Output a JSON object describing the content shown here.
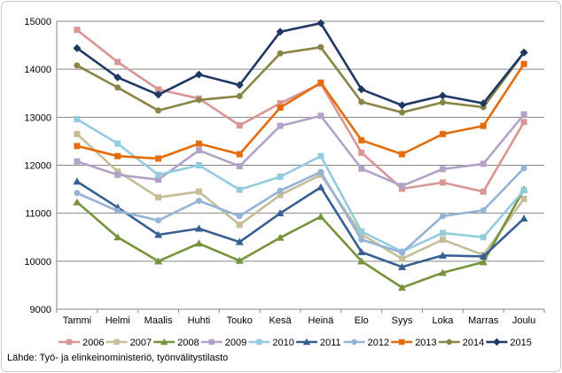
{
  "chart_data": {
    "type": "line",
    "title": "",
    "xlabel": "",
    "ylabel": "",
    "ylim": [
      9000,
      15000
    ],
    "ytick_step": 1000,
    "ytick_labels": [
      "9000",
      "10000",
      "11000",
      "12000",
      "13000",
      "14000",
      "15000"
    ],
    "grid": true,
    "legend_position": "bottom",
    "categories": [
      "Tammi",
      "Helmi",
      "Maalis",
      "Huhti",
      "Touko",
      "Kesä",
      "Heinä",
      "Elo",
      "Syys",
      "Loka",
      "Marras",
      "Joulu"
    ],
    "series": [
      {
        "name": "2006",
        "color": "#d99694",
        "marker": "square",
        "values": [
          14820,
          14150,
          13580,
          13390,
          12830,
          13290,
          13700,
          12260,
          11510,
          11640,
          11450,
          12900
        ]
      },
      {
        "name": "2007",
        "color": "#c4bd97",
        "marker": "square",
        "values": [
          12650,
          11870,
          11330,
          11450,
          10760,
          11380,
          11800,
          10560,
          10050,
          10450,
          10130,
          11300
        ]
      },
      {
        "name": "2008",
        "color": "#77933c",
        "marker": "triangle",
        "values": [
          11230,
          10500,
          10000,
          10370,
          10010,
          10490,
          10930,
          10000,
          9450,
          9760,
          9980,
          11500
        ]
      },
      {
        "name": "2009",
        "color": "#b3a2c7",
        "marker": "square",
        "values": [
          12080,
          11800,
          11700,
          12310,
          11980,
          12820,
          13030,
          11930,
          11570,
          11920,
          12030,
          13060
        ]
      },
      {
        "name": "2010",
        "color": "#93cddd",
        "marker": "square",
        "values": [
          12960,
          12450,
          11800,
          12000,
          11490,
          11760,
          12190,
          10620,
          10200,
          10590,
          10500,
          11480
        ]
      },
      {
        "name": "2011",
        "color": "#376092",
        "marker": "triangle",
        "values": [
          11660,
          11120,
          10550,
          10680,
          10400,
          11000,
          11540,
          10190,
          9880,
          10120,
          10100,
          10890
        ]
      },
      {
        "name": "2012",
        "color": "#95b3d7",
        "marker": "circle",
        "values": [
          11420,
          11050,
          10850,
          11260,
          10940,
          11470,
          11860,
          10450,
          10180,
          10940,
          11060,
          11940
        ]
      },
      {
        "name": "2013",
        "color": "#e46c0a",
        "marker": "square",
        "values": [
          12400,
          12190,
          12140,
          12450,
          12230,
          13200,
          13720,
          12520,
          12230,
          12650,
          12820,
          14110
        ]
      },
      {
        "name": "2014",
        "color": "#8b8447",
        "marker": "circle",
        "values": [
          14080,
          13620,
          13140,
          13360,
          13440,
          14330,
          14460,
          13320,
          13100,
          13310,
          13210,
          14350
        ]
      },
      {
        "name": "2015",
        "color": "#1f3864",
        "marker": "diamond",
        "values": [
          14440,
          13830,
          13470,
          13890,
          13670,
          14780,
          14960,
          13580,
          13250,
          13450,
          13290,
          14350
        ]
      }
    ]
  },
  "source_text": "Lähde: Työ- ja elinkeinoministeriö, työnvälitystilasto"
}
